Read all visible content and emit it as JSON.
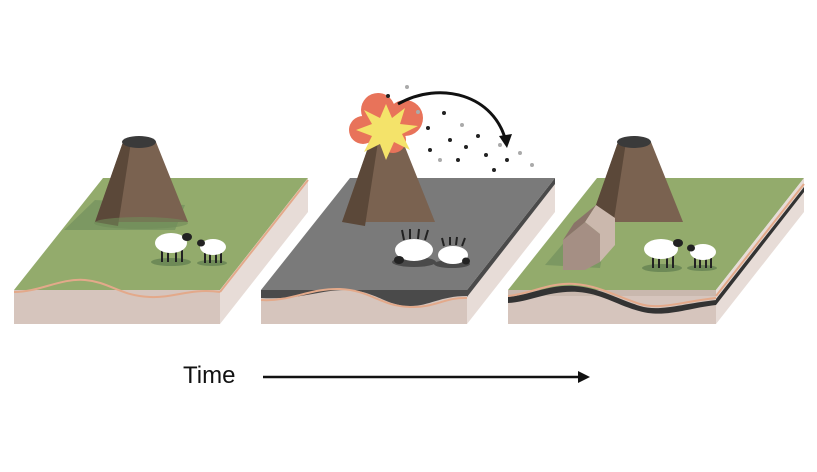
{
  "diagram": {
    "time_label": "Time",
    "stages": [
      {
        "name": "before-eruption"
      },
      {
        "name": "eruption-ash-fall"
      },
      {
        "name": "after-recovery"
      }
    ]
  },
  "colors": {
    "grass": "#93ab6c",
    "grass_shadow": "#6e8a57",
    "ash": "#7a7a7a",
    "ash_dark": "#4a4a4a",
    "soil": "#d6c5bd",
    "soil_side": "#e7dcd7",
    "soil_line": "#e3a98a",
    "volcano": "#7a6250",
    "volcano_dark": "#5b4839",
    "crater": "#3a3a3a",
    "explosion_yellow": "#f4e36a",
    "explosion_red": "#e8735a",
    "barn": "#a58f84",
    "sheep": "#ffffff",
    "sheep_head": "#222222"
  }
}
